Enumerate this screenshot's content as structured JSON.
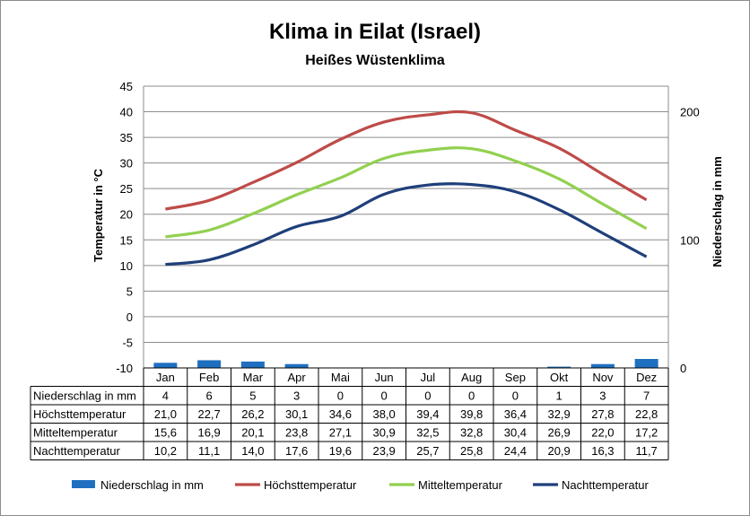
{
  "chart_data": {
    "type": "line",
    "title": "Klima in Eilat (Israel)",
    "subtitle": "Heißes Wüstenklima",
    "categories": [
      "Jan",
      "Feb",
      "Mar",
      "Apr",
      "Mai",
      "Jun",
      "Jul",
      "Aug",
      "Sep",
      "Okt",
      "Nov",
      "Dez"
    ],
    "ylabel": "Temperatur in °C",
    "y2label": "Niederschlag in mm",
    "ylim": [
      -10,
      45
    ],
    "yticks": [
      "45",
      "40",
      "35",
      "30",
      "25",
      "20",
      "15",
      "10",
      "5",
      "0",
      "-5",
      "-10"
    ],
    "y2lim": [
      0,
      220
    ],
    "y2ticks": [
      "200",
      "100",
      "0"
    ],
    "grid": true,
    "legend_position": "bottom",
    "bar_series": {
      "name": "Niederschlag in mm",
      "color": "#1f6fc0",
      "values": [
        4,
        6,
        5,
        3,
        0,
        0,
        0,
        0,
        0,
        1,
        3,
        7
      ],
      "labels": [
        "4",
        "6",
        "5",
        "3",
        "0",
        "0",
        "0",
        "0",
        "0",
        "1",
        "3",
        "7"
      ]
    },
    "series": [
      {
        "name": "Höchsttemperatur",
        "color": "#be4b48",
        "values": [
          21.0,
          22.7,
          26.2,
          30.1,
          34.6,
          38.0,
          39.4,
          39.8,
          36.4,
          32.9,
          27.8,
          22.8
        ],
        "labels": [
          "21,0",
          "22,7",
          "26,2",
          "30,1",
          "34,6",
          "38,0",
          "39,4",
          "39,8",
          "36,4",
          "32,9",
          "27,8",
          "22,8"
        ]
      },
      {
        "name": "Mitteltemperatur",
        "color": "#92d050",
        "values": [
          15.6,
          16.9,
          20.1,
          23.8,
          27.1,
          30.9,
          32.5,
          32.8,
          30.4,
          26.9,
          22.0,
          17.2
        ],
        "labels": [
          "15,6",
          "16,9",
          "20,1",
          "23,8",
          "27,1",
          "30,9",
          "32,5",
          "32,8",
          "30,4",
          "26,9",
          "22,0",
          "17,2"
        ]
      },
      {
        "name": "Nachttemperatur",
        "color": "#1f3f7a",
        "values": [
          10.2,
          11.1,
          14.0,
          17.6,
          19.6,
          23.9,
          25.7,
          25.8,
          24.4,
          20.9,
          16.3,
          11.7
        ],
        "labels": [
          "10,2",
          "11,1",
          "14,0",
          "17,6",
          "19,6",
          "23,9",
          "25,7",
          "25,8",
          "24,4",
          "20,9",
          "16,3",
          "11,7"
        ]
      }
    ]
  }
}
